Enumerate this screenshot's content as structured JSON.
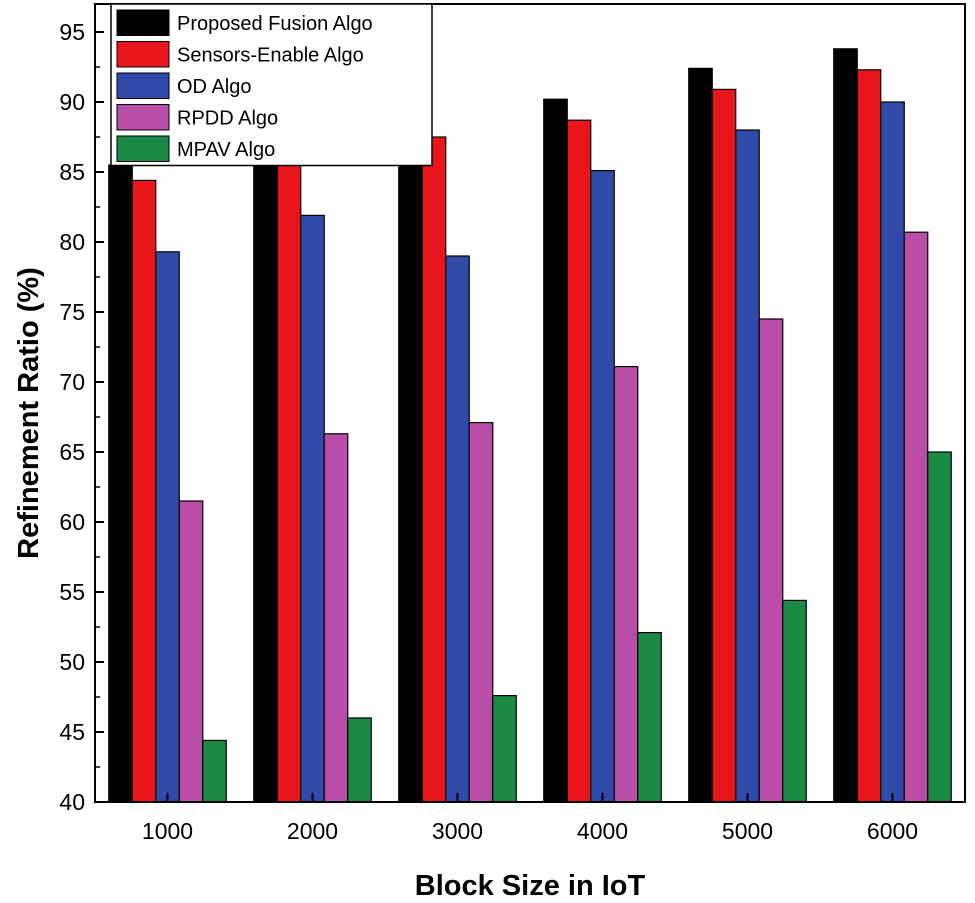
{
  "chart_data": {
    "type": "bar",
    "title": "",
    "xlabel": "Block Size in IoT",
    "ylabel": "Refinement Ratio (%)",
    "categories": [
      "1000",
      "2000",
      "3000",
      "4000",
      "5000",
      "6000"
    ],
    "ylim": [
      40,
      97
    ],
    "yticks": [
      40,
      45,
      50,
      55,
      60,
      65,
      70,
      75,
      80,
      85,
      90,
      95
    ],
    "grid": false,
    "legend_position": "top-left",
    "series": [
      {
        "name": "Proposed Fusion Algo",
        "color": "#000000",
        "values": [
          85.5,
          87.5,
          89.1,
          90.2,
          92.4,
          93.8
        ]
      },
      {
        "name": "Sensors-Enable Algo",
        "color": "#e8161b",
        "values": [
          84.4,
          86.9,
          87.5,
          88.7,
          90.9,
          92.3
        ]
      },
      {
        "name": "OD Algo",
        "color": "#2f4aa8",
        "values": [
          79.3,
          81.9,
          79.0,
          85.1,
          88.0,
          90.0
        ]
      },
      {
        "name": "RPDD Algo",
        "color": "#b94da8",
        "values": [
          61.5,
          66.3,
          67.1,
          71.1,
          74.5,
          80.7
        ]
      },
      {
        "name": "MPAV Algo",
        "color": "#1a8a45",
        "values": [
          44.4,
          46.0,
          47.6,
          52.1,
          54.4,
          65.0
        ]
      }
    ]
  }
}
